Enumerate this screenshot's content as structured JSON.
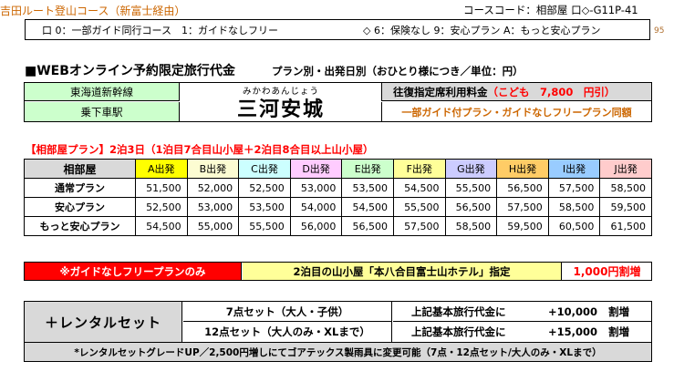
{
  "header": {
    "course_title": "吉田ルート登山コース（新富士経由）",
    "course_code": "コースコード：相部屋 口◇-G11P-41",
    "option_left": "口 0：一部ガイド同行コース　1：ガイドなしフリー",
    "option_right": "◇ 6：保険なし 9：安心プラン A：もっと安心プラン",
    "page_number": "95"
  },
  "section_title": {
    "main": "■WEBオンライン予約限定旅行代金",
    "sub": "プラン別・出発日別（おひとり様につき／単位：円）"
  },
  "station": {
    "line_label": "東海道新幹線",
    "station_label": "乗下車駅",
    "reading": "みかわあんじょう",
    "name": "三河安城",
    "fare_label": "往復指定席利用料金",
    "fare_child": "（こども　7,800　円引）",
    "note": "一部ガイド付プラン・ガイドなしフリープラン同額"
  },
  "plan_heading": "【相部屋プラン】2泊3日（1泊目7合目山小屋＋2泊目8合目以上山小屋）",
  "price_table": {
    "corner": "相部屋",
    "columns": [
      {
        "label": "A出発",
        "color": "#ffff00"
      },
      {
        "label": "B出発",
        "color": "#fcfcd2"
      },
      {
        "label": "C出発",
        "color": "#ccffff"
      },
      {
        "label": "D出発",
        "color": "#ffccff"
      },
      {
        "label": "E出発",
        "color": "#ccffcc"
      },
      {
        "label": "F出発",
        "color": "#ffff99"
      },
      {
        "label": "G出発",
        "color": "#ccccff"
      },
      {
        "label": "H出発",
        "color": "#ffcc66"
      },
      {
        "label": "I出発",
        "color": "#99ccff"
      },
      {
        "label": "J出発",
        "color": "#ffcccc"
      }
    ],
    "rows": [
      {
        "label": "通常プラン",
        "values": [
          "51,500",
          "52,000",
          "52,500",
          "53,000",
          "53,500",
          "54,500",
          "55,500",
          "56,500",
          "57,500",
          "58,500"
        ]
      },
      {
        "label": "安心プラン",
        "values": [
          "52,500",
          "53,000",
          "53,500",
          "54,000",
          "54,500",
          "55,500",
          "56,500",
          "57,500",
          "58,500",
          "59,500"
        ]
      },
      {
        "label": "もっと安心プラン",
        "values": [
          "54,500",
          "55,000",
          "55,500",
          "56,000",
          "56,500",
          "57,500",
          "58,500",
          "59,500",
          "60,500",
          "61,500"
        ]
      }
    ]
  },
  "guide_free": {
    "label": "※ガイドなしフリープランのみ",
    "hotel": "2泊目の山小屋「本八合目富士山ホテル」指定",
    "surcharge": "1,000円割増"
  },
  "rental": {
    "title": "＋レンタルセット",
    "items": [
      {
        "name": "7点セット（大人・子供）",
        "desc": "上記基本旅行代金に",
        "amount": "+10,000",
        "unit": "割増"
      },
      {
        "name": "12点セット（大人のみ・XLまで）",
        "desc": "上記基本旅行代金に",
        "amount": "+15,000",
        "unit": "割増"
      }
    ],
    "footnote": "*レンタルセットグレードUP／2,500円増しにてゴアテックス製雨具に変更可能（7点・12点セット/大人のみ・XLまで）"
  }
}
